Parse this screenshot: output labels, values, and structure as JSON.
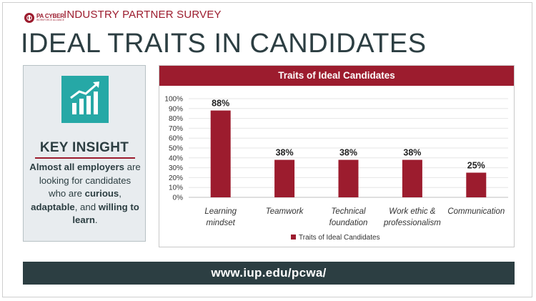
{
  "header": {
    "logo_line1": "PA CYBER",
    "logo_line2": "WORKFORCE ALLIANCE",
    "survey_label": "INDUSTRY PARTNER SURVEY",
    "page_title": "IDEAL TRAITS IN CANDIDATES"
  },
  "insight": {
    "icon": "growth-chart-icon",
    "heading": "KEY INSIGHT",
    "text_1": "Almost all employers",
    "text_2": " are looking for candidates who are ",
    "text_3": "curious",
    "text_4": ", ",
    "text_5": "adaptable",
    "text_6": ", and ",
    "text_7": "willing to learn",
    "text_8": "."
  },
  "chart_data": {
    "type": "bar",
    "title": "Traits of Ideal Candidates",
    "categories": [
      [
        "Learning",
        "mindset"
      ],
      [
        "Teamwork"
      ],
      [
        "Technical",
        "foundation"
      ],
      [
        "Work ethic &",
        "professionalism"
      ],
      [
        "Communication"
      ]
    ],
    "series": [
      {
        "name": "Traits of Ideal Candidates",
        "values": [
          88,
          38,
          38,
          38,
          25
        ],
        "color": "#9c1c2e"
      }
    ],
    "data_labels": [
      "88%",
      "38%",
      "38%",
      "38%",
      "25%"
    ],
    "y_ticks": [
      "0%",
      "10%",
      "20%",
      "30%",
      "40%",
      "50%",
      "60%",
      "70%",
      "80%",
      "90%",
      "100%"
    ],
    "ylim": [
      0,
      100
    ],
    "grid": true,
    "legend_position": "bottom"
  },
  "footer": {
    "url": "www.iup.edu/pcwa/"
  },
  "colors": {
    "brand": "#9c1c2e",
    "dark": "#2c3e42",
    "teal": "#26a8a6",
    "panel": "#e8ecef"
  }
}
